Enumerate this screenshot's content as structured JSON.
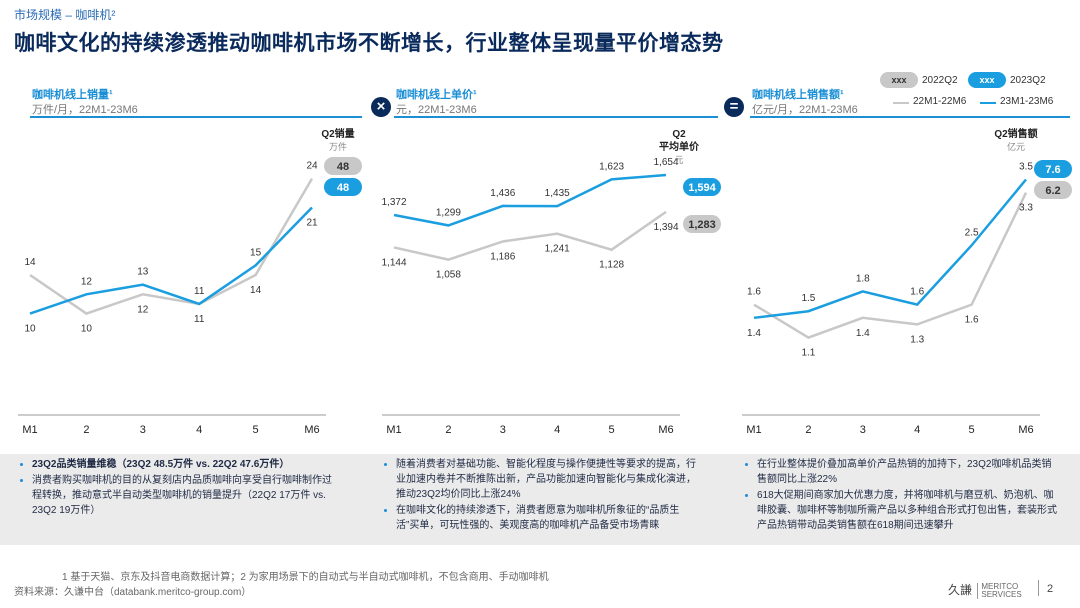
{
  "breadcrumb": "市场规模 – 咖啡机²",
  "title": "咖啡文化的持续渗透推动咖啡机市场不断增长，行业整体呈现量平价增态势",
  "operators": {
    "times": "×",
    "equals": "="
  },
  "legend": {
    "pill_text": "xxx",
    "q2_2022": "2022Q2",
    "q2_2023": "2023Q2",
    "series_2022": "22M1-22M6",
    "series_2023": "23M1-23M6",
    "color_2022": "#c8c8c8",
    "color_2023": "#1a9ee0"
  },
  "panels": [
    {
      "title": "咖啡机线上销量¹",
      "subtitle": "万件/月，22M1-23M6"
    },
    {
      "title": "咖啡机线上单价¹",
      "subtitle": "元，22M1-23M6"
    },
    {
      "title": "咖啡机线上销售额¹",
      "subtitle": "亿元/月，22M1-23M6"
    }
  ],
  "chart_data": [
    {
      "type": "line",
      "title": "咖啡机线上销量",
      "unit": "万件/月",
      "x": [
        "M1",
        "M2",
        "M3",
        "M4",
        "M5",
        "M6"
      ],
      "x_tick_labels": [
        "M1",
        "2",
        "3",
        "4",
        "5",
        "M6"
      ],
      "series": [
        {
          "name": "22M1-22M6",
          "values": [
            14,
            10,
            12,
            11,
            14,
            24
          ]
        },
        {
          "name": "23M1-23M6",
          "values": [
            10,
            12,
            13,
            11,
            15,
            21
          ]
        }
      ],
      "value_labels_2022": [
        "14",
        "10",
        "12",
        "11",
        "14",
        "24"
      ],
      "value_labels_2023": [
        "10",
        "12",
        "13",
        "11",
        "15",
        "21"
      ],
      "q2_header": [
        "Q2销量",
        "万件"
      ],
      "q2_2022": "48",
      "q2_2023": "48",
      "ylim": [
        0,
        28
      ]
    },
    {
      "type": "line",
      "title": "咖啡机线上单价",
      "unit": "元",
      "x": [
        "M1",
        "M2",
        "M3",
        "M4",
        "M5",
        "M6"
      ],
      "x_tick_labels": [
        "M1",
        "2",
        "3",
        "4",
        "5",
        "M6"
      ],
      "series": [
        {
          "name": "22M1-22M6",
          "values": [
            1144,
            1058,
            1186,
            1241,
            1128,
            1394
          ]
        },
        {
          "name": "23M1-23M6",
          "values": [
            1372,
            1299,
            1436,
            1435,
            1623,
            1654
          ]
        }
      ],
      "value_labels_2022": [
        "1,144",
        "1,058",
        "1,186",
        "1,241",
        "1,128",
        "1,394"
      ],
      "value_labels_2023": [
        "1,372",
        "1,299",
        "1,436",
        "1,435",
        "1,623",
        "1,654"
      ],
      "q2_header": [
        "Q2",
        "平均单价",
        "元"
      ],
      "q2_2022": "1,283",
      "q2_2023": "1,594",
      "ylim": [
        0,
        1900
      ]
    },
    {
      "type": "line",
      "title": "咖啡机线上销售额",
      "unit": "亿元/月",
      "x": [
        "M1",
        "M2",
        "M3",
        "M4",
        "M5",
        "M6"
      ],
      "x_tick_labels": [
        "M1",
        "2",
        "3",
        "4",
        "5",
        "M6"
      ],
      "series": [
        {
          "name": "22M1-22M6",
          "values": [
            1.6,
            1.1,
            1.4,
            1.3,
            1.6,
            3.3
          ]
        },
        {
          "name": "23M1-23M6",
          "values": [
            1.4,
            1.5,
            1.8,
            1.6,
            2.5,
            3.5
          ]
        }
      ],
      "value_labels_2022": [
        "1.6",
        "1.1",
        "1.4",
        "1.3",
        "1.6",
        "3.3"
      ],
      "value_labels_2023": [
        "1.4",
        "1.5",
        "1.8",
        "1.6",
        "2.5",
        "3.5"
      ],
      "q2_header": [
        "Q2销售额",
        "亿元"
      ],
      "q2_2022": "6.2",
      "q2_2023": "7.6",
      "ylim": [
        0,
        4.1
      ]
    }
  ],
  "bullets": [
    [
      "23Q2品类销量维稳（23Q2 48.5万件 vs. 22Q2 47.6万件）",
      "消费者购买咖啡机的目的从复刻店内品质咖啡向享受自行咖啡制作过程转换，推动意式半自动类型咖啡机的销量提升（22Q2 17万件 vs. 23Q2 19万件）"
    ],
    [
      "随着消费者对基础功能、智能化程度与操作便捷性等要求的提高，行业加速内卷并不断推陈出新，产品功能加速向智能化与集成化演进，推动23Q2均价同比上涨24%",
      "在咖啡文化的持续渗透下，消费者愿意为咖啡机所象征的“品质生活”买单，可玩性强的、美观度高的咖啡机产品备受市场青睐"
    ],
    [
      "在行业整体提价叠加高单价产品热销的加持下，23Q2咖啡机品类销售额同比上涨22%",
      "618大促期间商家加大优惠力度，并将咖啡机与磨豆机、奶泡机、咖啡胶囊、咖啡杯等制咖所需产品以多种组合形式打包出售，套装形式产品热销带动品类销售额在618期间迅速攀升"
    ]
  ],
  "footnote": "1  基于天猫、京东及抖音电商数据计算；2  为家用场景下的自动式与半自动式咖啡机，不包含商用、手动咖啡机",
  "source": "资料来源：久谦中台（databank.meritco-group.com）",
  "logo": {
    "cn": "久謙",
    "en1": "MERITCO",
    "en2": "SERVICES"
  },
  "page_number": "2"
}
